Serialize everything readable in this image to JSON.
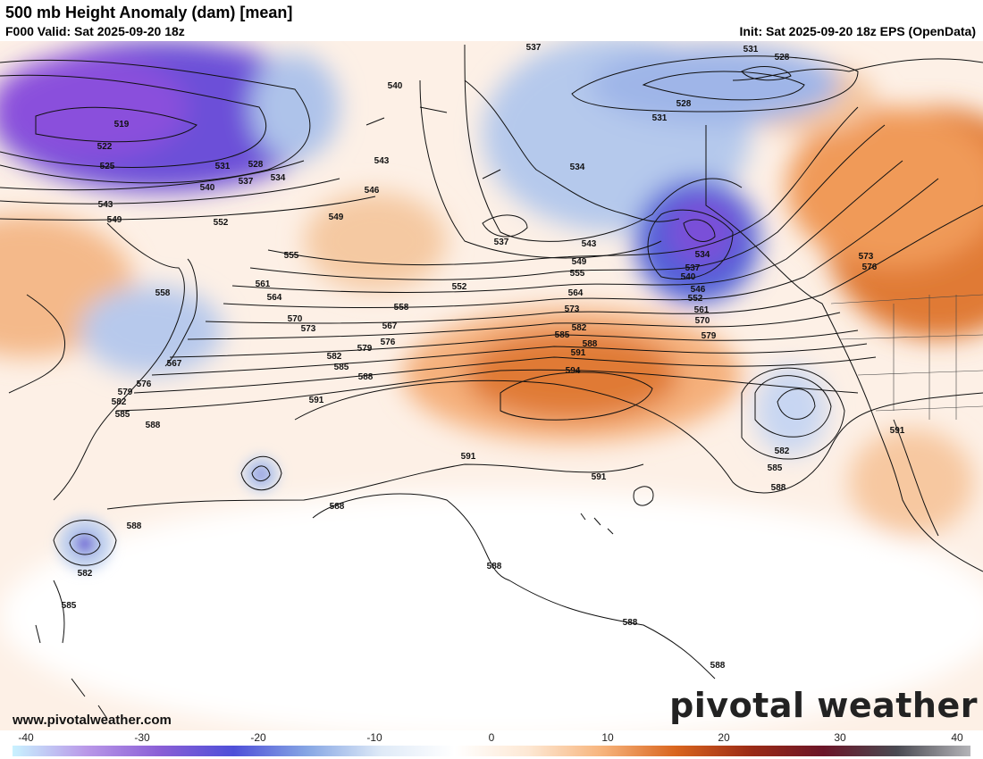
{
  "header": {
    "title": "500 mb Height Anomaly (dam) [mean]",
    "valid": "F000 Valid: Sat 2025-09-20 18z",
    "init": "Init: Sat 2025-09-20 18z EPS (OpenData)"
  },
  "branding": {
    "logo_text": "pivotal weather",
    "website": "www.pivotalweather.com"
  },
  "colorbar": {
    "ticks": [
      "-40",
      "-30",
      "-20",
      "-10",
      "0",
      "10",
      "20",
      "30",
      "40"
    ],
    "colors": [
      "#c9f2ff",
      "#b998e8",
      "#8a5fd6",
      "#4e4fd8",
      "#86a6e4",
      "#dfeaf7",
      "#ffffff",
      "#fde8d4",
      "#f7b47c",
      "#d9651e",
      "#9c2c16",
      "#6b1528",
      "#4a4a52",
      "#b4b4b8"
    ]
  },
  "contour_labels": [
    {
      "text": "537"
    },
    {
      "text": "531"
    },
    {
      "text": "528"
    },
    {
      "text": "528"
    },
    {
      "text": "531"
    },
    {
      "text": "540"
    },
    {
      "text": "519"
    },
    {
      "text": "522"
    },
    {
      "text": "525"
    },
    {
      "text": "531"
    },
    {
      "text": "528"
    },
    {
      "text": "534"
    },
    {
      "text": "537"
    },
    {
      "text": "540"
    },
    {
      "text": "543"
    },
    {
      "text": "549"
    },
    {
      "text": "552"
    },
    {
      "text": "543"
    },
    {
      "text": "546"
    },
    {
      "text": "549"
    },
    {
      "text": "534"
    },
    {
      "text": "537"
    },
    {
      "text": "543"
    },
    {
      "text": "534"
    },
    {
      "text": "537"
    },
    {
      "text": "540"
    },
    {
      "text": "546"
    },
    {
      "text": "552"
    },
    {
      "text": "561"
    },
    {
      "text": "570"
    },
    {
      "text": "579"
    },
    {
      "text": "549"
    },
    {
      "text": "555"
    },
    {
      "text": "552"
    },
    {
      "text": "564"
    },
    {
      "text": "573"
    },
    {
      "text": "582"
    },
    {
      "text": "585"
    },
    {
      "text": "588"
    },
    {
      "text": "591"
    },
    {
      "text": "594"
    },
    {
      "text": "555"
    },
    {
      "text": "558"
    },
    {
      "text": "561"
    },
    {
      "text": "564"
    },
    {
      "text": "558"
    },
    {
      "text": "567"
    },
    {
      "text": "570"
    },
    {
      "text": "573"
    },
    {
      "text": "576"
    },
    {
      "text": "579"
    },
    {
      "text": "582"
    },
    {
      "text": "585"
    },
    {
      "text": "588"
    },
    {
      "text": "567"
    },
    {
      "text": "576"
    },
    {
      "text": "579"
    },
    {
      "text": "582"
    },
    {
      "text": "585"
    },
    {
      "text": "588"
    },
    {
      "text": "591"
    },
    {
      "text": "591"
    },
    {
      "text": "591"
    },
    {
      "text": "573"
    },
    {
      "text": "576"
    },
    {
      "text": "582"
    },
    {
      "text": "585"
    },
    {
      "text": "588"
    },
    {
      "text": "591"
    },
    {
      "text": "588"
    },
    {
      "text": "588"
    },
    {
      "text": "582"
    },
    {
      "text": "585"
    },
    {
      "text": "588"
    },
    {
      "text": "588"
    },
    {
      "text": "588"
    }
  ]
}
